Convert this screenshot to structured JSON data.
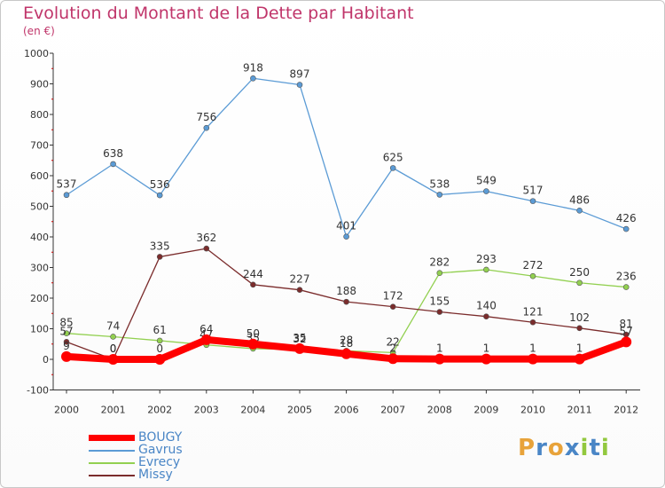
{
  "chart_data": {
    "type": "line",
    "title": "Evolution du Montant de la Dette par Habitant",
    "subtitle": "(en €)",
    "categories": [
      "2000",
      "2001",
      "2002",
      "2003",
      "2004",
      "2005",
      "2006",
      "2007",
      "2008",
      "2009",
      "2010",
      "2011",
      "2012"
    ],
    "ylim": [
      -100,
      1000
    ],
    "yticks": [
      -100,
      0,
      100,
      200,
      300,
      400,
      500,
      600,
      700,
      800,
      900,
      1000
    ],
    "grid": false,
    "legend_position": "bottom-left",
    "series": [
      {
        "name": "Gavrus",
        "color": "#5b9bd5",
        "values": [
          537,
          638,
          536,
          756,
          918,
          897,
          401,
          625,
          538,
          549,
          517,
          486,
          426
        ]
      },
      {
        "name": "Evrecy",
        "color": "#92d050",
        "values": [
          85,
          74,
          61,
          47,
          35,
          32,
          28,
          22,
          282,
          293,
          272,
          250,
          236
        ]
      },
      {
        "name": "Missy",
        "color": "#7b2c2c",
        "values": [
          57,
          0,
          335,
          362,
          244,
          227,
          188,
          172,
          155,
          140,
          121,
          102,
          81
        ]
      },
      {
        "name": "BOUGY",
        "color": "#ff0000",
        "values": [
          9,
          0,
          0,
          64,
          50,
          35,
          18,
          2,
          1,
          1,
          1,
          1,
          57
        ]
      }
    ],
    "legend_order": [
      "BOUGY",
      "Gavrus",
      "Evrecy",
      "Missy"
    ]
  },
  "logo": {
    "letters": [
      "P",
      "r",
      "o",
      "x",
      "i",
      "t",
      "i"
    ],
    "colors": [
      "#e8a33a",
      "#4a86c6",
      "#e8a33a",
      "#4a86c6",
      "#92c83e",
      "#4a86c6",
      "#92c83e"
    ]
  }
}
